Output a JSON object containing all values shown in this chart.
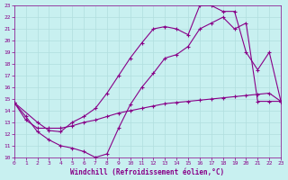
{
  "xlabel": "Windchill (Refroidissement éolien,°C)",
  "bg_color": "#c8f0f0",
  "line_color": "#880088",
  "xmin": 0,
  "xmax": 23,
  "ymin": 10,
  "ymax": 23,
  "curve1_x": [
    0,
    1,
    2,
    3,
    4,
    5,
    6,
    7,
    8,
    9,
    10,
    11,
    12,
    13,
    14,
    15,
    16,
    17,
    18,
    19,
    20,
    21,
    22,
    23
  ],
  "curve1_y": [
    14.7,
    13.2,
    12.5,
    12.5,
    12.5,
    12.7,
    13.0,
    13.2,
    13.5,
    13.8,
    14.0,
    14.2,
    14.4,
    14.6,
    14.7,
    14.8,
    14.9,
    15.0,
    15.1,
    15.2,
    15.3,
    15.4,
    15.5,
    14.8
  ],
  "curve2_x": [
    0,
    1,
    2,
    3,
    4,
    5,
    6,
    7,
    8,
    9,
    10,
    11,
    12,
    13,
    14,
    15,
    16,
    17,
    18,
    19,
    20,
    21,
    22,
    23
  ],
  "curve2_y": [
    14.7,
    13.5,
    12.2,
    11.5,
    11.0,
    10.8,
    10.5,
    10.0,
    10.3,
    12.5,
    14.5,
    16.0,
    17.2,
    18.5,
    18.8,
    19.5,
    21.0,
    21.5,
    22.0,
    21.0,
    21.5,
    14.8,
    14.8,
    14.8
  ],
  "curve3_x": [
    0,
    2,
    3,
    4,
    5,
    6,
    7,
    8,
    9,
    10,
    11,
    12,
    13,
    14,
    15,
    16,
    17,
    18,
    19,
    20,
    21,
    22,
    23
  ],
  "curve3_y": [
    14.7,
    13.0,
    12.3,
    12.2,
    13.0,
    13.5,
    14.2,
    15.5,
    17.0,
    18.5,
    19.8,
    21.0,
    21.2,
    21.0,
    20.5,
    23.0,
    23.0,
    22.5,
    22.5,
    19.0,
    17.5,
    19.0,
    14.8
  ]
}
